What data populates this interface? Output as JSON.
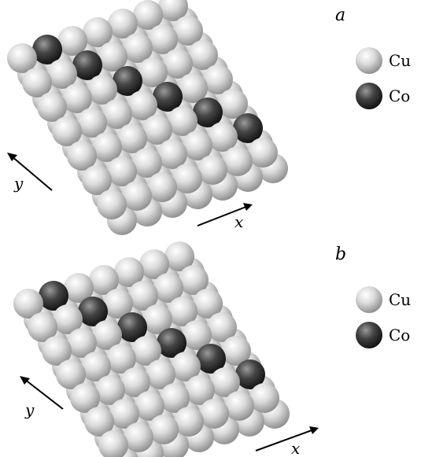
{
  "panels": [
    {
      "label": "a",
      "axes": {
        "x": "x",
        "y": "y"
      },
      "legend": [
        {
          "symbol": "Cu",
          "color": "#d4d4d4"
        },
        {
          "symbol": "Co",
          "color": "#3a3a3a"
        }
      ],
      "structure": {
        "rows": 7,
        "cols": 7,
        "layers": 2,
        "co_diagonal": "one cobalt chain along the x direction on the top layer"
      }
    },
    {
      "label": "b",
      "axes": {
        "x": "x",
        "y": "y"
      },
      "legend": [
        {
          "symbol": "Cu",
          "color": "#d4d4d4"
        },
        {
          "symbol": "Co",
          "color": "#3a3a3a"
        }
      ],
      "structure": {
        "rows": 7,
        "cols": 7,
        "layers": 2,
        "co_diagonal": "one cobalt chain along the x direction on the top layer"
      }
    }
  ],
  "colors": {
    "cu_light": "#f4f4f4",
    "cu_mid": "#cfcfcf",
    "cu_dark": "#8a8a8a",
    "co_light": "#8a8a8a",
    "co_mid": "#3c3c3c",
    "co_dark": "#101010",
    "bond": "#b8b8b8"
  }
}
